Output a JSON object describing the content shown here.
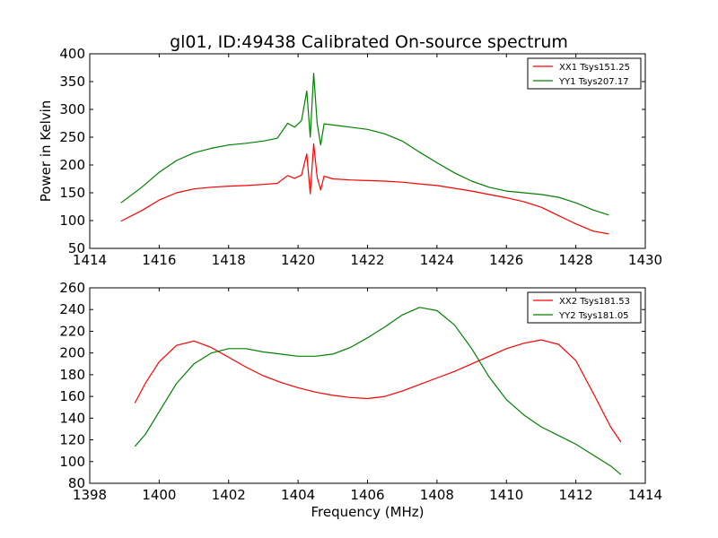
{
  "title": "gl01, ID:49438 Calibrated On-source spectrum",
  "chart_data": [
    {
      "type": "line",
      "xlabel": "",
      "ylabel": "Power in Kelvin",
      "xlim": [
        1414,
        1430
      ],
      "ylim": [
        50,
        400
      ],
      "xticks": [
        1414,
        1416,
        1418,
        1420,
        1422,
        1424,
        1426,
        1428,
        1430
      ],
      "yticks": [
        50,
        100,
        150,
        200,
        250,
        300,
        350,
        400
      ],
      "legend_position": "top-right",
      "series": [
        {
          "name": "XX1 Tsys151.25",
          "color": "#ff0000",
          "points": [
            [
              1414.9,
              99
            ],
            [
              1415.5,
              118
            ],
            [
              1416.0,
              137
            ],
            [
              1416.5,
              150
            ],
            [
              1417.0,
              157
            ],
            [
              1417.5,
              160
            ],
            [
              1418.0,
              162
            ],
            [
              1418.5,
              163
            ],
            [
              1419.0,
              165
            ],
            [
              1419.4,
              167
            ],
            [
              1419.7,
              181
            ],
            [
              1419.9,
              176
            ],
            [
              1420.1,
              182
            ],
            [
              1420.25,
              220
            ],
            [
              1420.35,
              148
            ],
            [
              1420.45,
              238
            ],
            [
              1420.55,
              178
            ],
            [
              1420.65,
              155
            ],
            [
              1420.75,
              180
            ],
            [
              1421.0,
              175
            ],
            [
              1421.5,
              173
            ],
            [
              1422.0,
              172
            ],
            [
              1422.5,
              171
            ],
            [
              1423.0,
              169
            ],
            [
              1423.5,
              166
            ],
            [
              1424.0,
              163
            ],
            [
              1424.5,
              158
            ],
            [
              1425.0,
              153
            ],
            [
              1425.5,
              147
            ],
            [
              1426.0,
              141
            ],
            [
              1426.5,
              134
            ],
            [
              1427.0,
              124
            ],
            [
              1427.5,
              109
            ],
            [
              1428.0,
              94
            ],
            [
              1428.5,
              81
            ],
            [
              1428.95,
              76
            ]
          ]
        },
        {
          "name": "YY1 Tsys207.17",
          "color": "#008000",
          "points": [
            [
              1414.9,
              132
            ],
            [
              1415.5,
              160
            ],
            [
              1416.0,
              187
            ],
            [
              1416.5,
              208
            ],
            [
              1417.0,
              222
            ],
            [
              1417.5,
              230
            ],
            [
              1418.0,
              236
            ],
            [
              1418.5,
              239
            ],
            [
              1419.0,
              243
            ],
            [
              1419.4,
              248
            ],
            [
              1419.7,
              275
            ],
            [
              1419.9,
              268
            ],
            [
              1420.1,
              280
            ],
            [
              1420.25,
              333
            ],
            [
              1420.35,
              250
            ],
            [
              1420.45,
              365
            ],
            [
              1420.55,
              275
            ],
            [
              1420.65,
              236
            ],
            [
              1420.75,
              274
            ],
            [
              1421.0,
              272
            ],
            [
              1421.5,
              268
            ],
            [
              1422.0,
              264
            ],
            [
              1422.5,
              256
            ],
            [
              1423.0,
              243
            ],
            [
              1423.5,
              223
            ],
            [
              1424.0,
              204
            ],
            [
              1424.5,
              186
            ],
            [
              1425.0,
              171
            ],
            [
              1425.5,
              160
            ],
            [
              1426.0,
              153
            ],
            [
              1426.5,
              150
            ],
            [
              1427.0,
              147
            ],
            [
              1427.5,
              142
            ],
            [
              1428.0,
              132
            ],
            [
              1428.5,
              119
            ],
            [
              1428.95,
              110
            ]
          ]
        }
      ]
    },
    {
      "type": "line",
      "xlabel": "Frequency (MHz)",
      "ylabel": "",
      "xlim": [
        1398,
        1414
      ],
      "ylim": [
        80,
        260
      ],
      "xticks": [
        1398,
        1400,
        1402,
        1404,
        1406,
        1408,
        1410,
        1412,
        1414
      ],
      "yticks": [
        80,
        100,
        120,
        140,
        160,
        180,
        200,
        220,
        240,
        260
      ],
      "legend_position": "top-right",
      "series": [
        {
          "name": "XX2 Tsys181.53",
          "color": "#ff0000",
          "points": [
            [
              1399.3,
              154
            ],
            [
              1399.6,
              172
            ],
            [
              1400.0,
              192
            ],
            [
              1400.5,
              207
            ],
            [
              1401.0,
              211
            ],
            [
              1401.5,
              205
            ],
            [
              1402.0,
              196
            ],
            [
              1402.5,
              187
            ],
            [
              1403.0,
              179
            ],
            [
              1403.5,
              173
            ],
            [
              1404.0,
              168
            ],
            [
              1404.5,
              164
            ],
            [
              1405.0,
              161
            ],
            [
              1405.5,
              159
            ],
            [
              1406.0,
              158
            ],
            [
              1406.5,
              160
            ],
            [
              1407.0,
              165
            ],
            [
              1407.5,
              171
            ],
            [
              1408.0,
              177
            ],
            [
              1408.5,
              183
            ],
            [
              1409.0,
              190
            ],
            [
              1409.5,
              197
            ],
            [
              1410.0,
              204
            ],
            [
              1410.5,
              209
            ],
            [
              1411.0,
              212
            ],
            [
              1411.5,
              208
            ],
            [
              1412.0,
              193
            ],
            [
              1412.5,
              163
            ],
            [
              1413.0,
              132
            ],
            [
              1413.3,
              118
            ]
          ]
        },
        {
          "name": "YY2 Tsys181.05",
          "color": "#008000",
          "points": [
            [
              1399.3,
              114
            ],
            [
              1399.6,
              125
            ],
            [
              1400.0,
              146
            ],
            [
              1400.5,
              172
            ],
            [
              1401.0,
              190
            ],
            [
              1401.5,
              200
            ],
            [
              1402.0,
              204
            ],
            [
              1402.5,
              204
            ],
            [
              1403.0,
              201
            ],
            [
              1403.5,
              199
            ],
            [
              1404.0,
              197
            ],
            [
              1404.5,
              197
            ],
            [
              1405.0,
              199
            ],
            [
              1405.5,
              205
            ],
            [
              1406.0,
              214
            ],
            [
              1406.5,
              224
            ],
            [
              1407.0,
              235
            ],
            [
              1407.5,
              242
            ],
            [
              1408.0,
              239
            ],
            [
              1408.5,
              226
            ],
            [
              1409.0,
              204
            ],
            [
              1409.5,
              178
            ],
            [
              1410.0,
              157
            ],
            [
              1410.5,
              143
            ],
            [
              1411.0,
              132
            ],
            [
              1411.5,
              124
            ],
            [
              1412.0,
              116
            ],
            [
              1412.5,
              106
            ],
            [
              1413.0,
              96
            ],
            [
              1413.3,
              88
            ]
          ]
        }
      ]
    }
  ]
}
